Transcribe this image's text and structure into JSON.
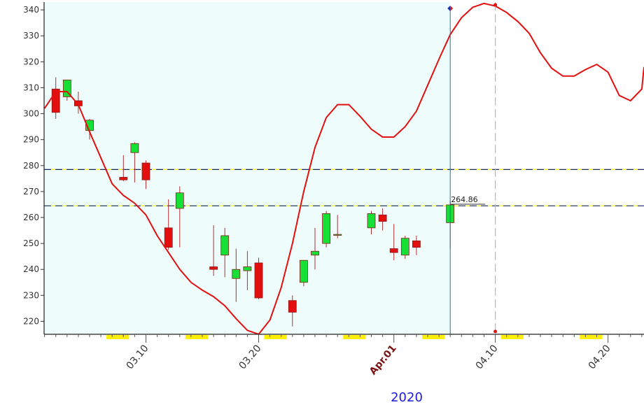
{
  "chart_data": {
    "type": "candlestick",
    "year_label": "2020",
    "y_axis": {
      "ylim": [
        215,
        343
      ],
      "ticks": [
        220,
        230,
        240,
        250,
        260,
        270,
        280,
        290,
        300,
        310,
        320,
        330,
        340
      ]
    },
    "x_axis": {
      "date_labels": [
        {
          "text": "03.10",
          "day": 10,
          "major": false
        },
        {
          "text": "03.20",
          "day": 20,
          "major": false
        },
        {
          "text": "Apr.01",
          "day": 32,
          "major": true
        },
        {
          "text": "04.10",
          "day": 41,
          "major": false
        },
        {
          "text": "04.20",
          "day": 51,
          "major": false
        }
      ]
    },
    "candles": [
      {
        "day": 2,
        "open": 309.5,
        "high": 314,
        "low": 298,
        "close": 300.5
      },
      {
        "day": 3,
        "open": 306.5,
        "high": 313,
        "low": 305,
        "close": 313
      },
      {
        "day": 4,
        "open": 305,
        "high": 308.5,
        "low": 300,
        "close": 303
      },
      {
        "day": 5,
        "open": 293.5,
        "high": 298,
        "low": 290,
        "close": 297.5
      },
      {
        "day": 8,
        "open": 275.5,
        "high": 284,
        "low": 274,
        "close": 274.5
      },
      {
        "day": 9,
        "open": 285,
        "high": 289,
        "low": 273.5,
        "close": 288.5
      },
      {
        "day": 10,
        "open": 281,
        "high": 282,
        "low": 271,
        "close": 274.5
      },
      {
        "day": 12,
        "open": 256,
        "high": 267,
        "low": 247.5,
        "close": 248.5
      },
      {
        "day": 13,
        "open": 263.5,
        "high": 272,
        "low": 248.5,
        "close": 269.5
      },
      {
        "day": 16,
        "open": 241,
        "high": 257,
        "low": 237.5,
        "close": 240
      },
      {
        "day": 17,
        "open": 245.5,
        "high": 256,
        "low": 237,
        "close": 253
      },
      {
        "day": 18,
        "open": 236.5,
        "high": 248,
        "low": 227.5,
        "close": 240
      },
      {
        "day": 19,
        "open": 239.5,
        "high": 247,
        "low": 232,
        "close": 241
      },
      {
        "day": 20,
        "open": 242.5,
        "high": 244.5,
        "low": 228.5,
        "close": 229
      },
      {
        "day": 23,
        "open": 228,
        "high": 230,
        "low": 218,
        "close": 223.5
      },
      {
        "day": 24,
        "open": 235,
        "high": 243.5,
        "low": 233.5,
        "close": 243.5
      },
      {
        "day": 25,
        "open": 245.5,
        "high": 256,
        "low": 240,
        "close": 247
      },
      {
        "day": 26,
        "open": 250,
        "high": 262.5,
        "low": 248.5,
        "close": 261.5
      },
      {
        "day": 27,
        "open": 253.5,
        "high": 261,
        "low": 252,
        "close": 253.5
      },
      {
        "day": 30,
        "open": 256,
        "high": 262.5,
        "low": 253.5,
        "close": 261.5
      },
      {
        "day": 31,
        "open": 261,
        "high": 263.5,
        "low": 255,
        "close": 258.5
      },
      {
        "day": 32,
        "open": 248,
        "high": 257.5,
        "low": 243.5,
        "close": 246.5
      },
      {
        "day": 33,
        "open": 245.5,
        "high": 253,
        "low": 244,
        "close": 252
      },
      {
        "day": 34,
        "open": 251,
        "high": 253,
        "low": 245.5,
        "close": 248.5
      },
      {
        "day": 37,
        "open": 258,
        "high": 266.5,
        "low": 248,
        "close": 264.86
      }
    ],
    "prediction_line": {
      "color": "#e31010",
      "points": [
        [
          1,
          302
        ],
        [
          2,
          308.5
        ],
        [
          3,
          308.5
        ],
        [
          4,
          303.5
        ],
        [
          5,
          293
        ],
        [
          6,
          283
        ],
        [
          7,
          273
        ],
        [
          8,
          268.5
        ],
        [
          9,
          265.5
        ],
        [
          10,
          261
        ],
        [
          11,
          253
        ],
        [
          12,
          246.5
        ],
        [
          13,
          240
        ],
        [
          14,
          235
        ],
        [
          15,
          232
        ],
        [
          16,
          229.5
        ],
        [
          17,
          226
        ],
        [
          18,
          221
        ],
        [
          19,
          216.5
        ],
        [
          20,
          215
        ],
        [
          21,
          220.5
        ],
        [
          22,
          233
        ],
        [
          23,
          250
        ],
        [
          24,
          270
        ],
        [
          25,
          287
        ],
        [
          26,
          298.5
        ],
        [
          27,
          303.5
        ],
        [
          28,
          303.5
        ],
        [
          29,
          299
        ],
        [
          30,
          294
        ],
        [
          31,
          291
        ],
        [
          32,
          291
        ],
        [
          33,
          295
        ],
        [
          34,
          301
        ],
        [
          35,
          311
        ],
        [
          36,
          321
        ],
        [
          37,
          330.5
        ],
        [
          38,
          337
        ],
        [
          39,
          341
        ],
        [
          40,
          342.5
        ],
        [
          41,
          341.5
        ],
        [
          42,
          339
        ],
        [
          43,
          335.5
        ],
        [
          44,
          331
        ],
        [
          45,
          323.5
        ],
        [
          46,
          317.5
        ],
        [
          47,
          314.5
        ],
        [
          48,
          314.5
        ],
        [
          49,
          317
        ],
        [
          50,
          319
        ],
        [
          51,
          316
        ],
        [
          52,
          307
        ],
        [
          53,
          305
        ],
        [
          54,
          309.5
        ],
        [
          55,
          318
        ]
      ]
    },
    "horizontal_lines": [
      {
        "value": 278.5,
        "color": "#1a2a60"
      },
      {
        "value": 264.5,
        "color": "#1a2a60"
      }
    ],
    "last_price": {
      "text": "264.86",
      "value": 264.86
    },
    "today_day": 37,
    "cursor_day": 41,
    "weekend_days": [
      7,
      8,
      14,
      15,
      21,
      22,
      28,
      29,
      35,
      36,
      42,
      43,
      49,
      50,
      56
    ],
    "colors": {
      "up": "#16e036",
      "down": "#e30e0e",
      "history_bg": "#eefcfc",
      "today_line": "#1a7aa0"
    }
  }
}
